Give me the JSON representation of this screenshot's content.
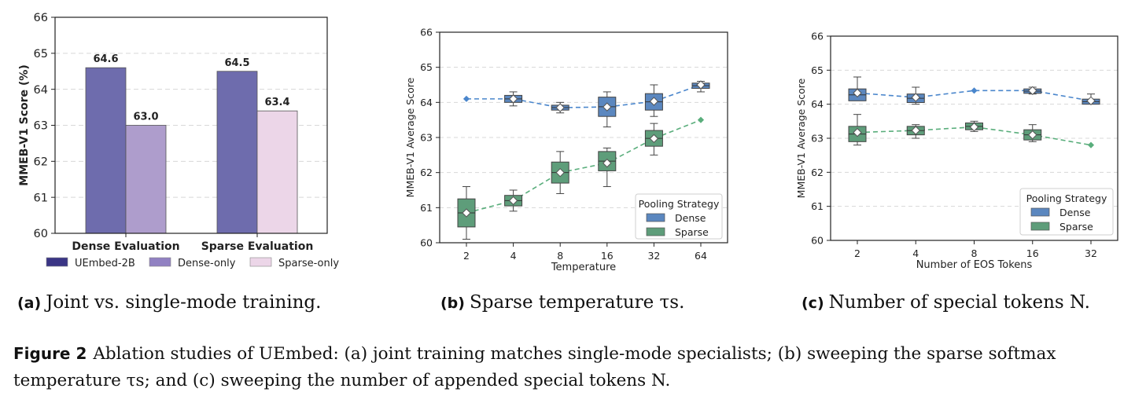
{
  "chart_data": [
    {
      "type": "bar",
      "categories": [
        "Dense Evaluation",
        "Sparse Evaluation"
      ],
      "series": [
        {
          "name": "UEmbed-2B",
          "values": [
            64.6,
            64.5
          ],
          "color": "#6e6cad"
        },
        {
          "name": "Dense-only",
          "values": [
            63.0,
            null
          ],
          "color": "#ae9dcc"
        },
        {
          "name": "Sparse-only",
          "values": [
            null,
            63.4
          ],
          "color": "#ecd6e8"
        }
      ],
      "legend_colors": [
        "#3a3585",
        "#9181c2",
        "#ecd6e8"
      ],
      "data_labels": [
        "64.6",
        "63.0",
        "64.5",
        "63.4"
      ],
      "ylabel": "MMEB-V1 Score (%)",
      "xlabel": "",
      "ylim": [
        60,
        66
      ],
      "yticks": [
        "60",
        "61",
        "62",
        "63",
        "64",
        "65",
        "66"
      ],
      "grid": true,
      "legend_placement": "bottom"
    },
    {
      "type": "box",
      "categories": [
        "2",
        "4",
        "8",
        "16",
        "32",
        "64"
      ],
      "xlabel": "Temperature",
      "ylabel": "MMEB-V1 Average Score",
      "ylim": [
        60,
        66
      ],
      "yticks": [
        "60",
        "61",
        "62",
        "63",
        "64",
        "65",
        "66"
      ],
      "legend_title": "Pooling Strategy",
      "legend_placement": "lower-right",
      "grid": true,
      "series": [
        {
          "name": "Dense",
          "color": "#5b87bf",
          "line_color": "#4a86cc",
          "mean": [
            64.1,
            64.1,
            63.85,
            63.87,
            64.03,
            64.5
          ],
          "q1": [
            64.1,
            64.0,
            63.78,
            63.6,
            63.78,
            64.4
          ],
          "q3": [
            64.1,
            64.2,
            63.92,
            64.15,
            64.25,
            64.55
          ],
          "wmin": [
            64.1,
            63.9,
            63.7,
            63.3,
            63.6,
            64.3
          ],
          "wmax": [
            64.1,
            64.3,
            64.0,
            64.3,
            64.5,
            64.6
          ]
        },
        {
          "name": "Sparse",
          "color": "#5e9d7a",
          "line_color": "#5aae7c",
          "mean": [
            60.85,
            61.2,
            62.0,
            62.27,
            62.97,
            63.5
          ],
          "q1": [
            60.45,
            61.05,
            61.7,
            62.05,
            62.75,
            63.5
          ],
          "q3": [
            61.25,
            61.35,
            62.3,
            62.6,
            63.2,
            63.5
          ],
          "wmin": [
            60.1,
            60.9,
            61.4,
            61.6,
            62.5,
            63.5
          ],
          "wmax": [
            61.6,
            61.5,
            62.6,
            62.7,
            63.4,
            63.5
          ]
        }
      ]
    },
    {
      "type": "box",
      "categories": [
        "2",
        "4",
        "8",
        "16",
        "32"
      ],
      "xlabel": "Number of EOS Tokens",
      "ylabel": "MMEB-V1 Average Score",
      "ylim": [
        60,
        66
      ],
      "yticks": [
        "60",
        "61",
        "62",
        "63",
        "64",
        "65",
        "66"
      ],
      "legend_title": "Pooling Strategy",
      "legend_placement": "lower-right",
      "grid": true,
      "series": [
        {
          "name": "Dense",
          "color": "#5b87bf",
          "line_color": "#4a86cc",
          "mean": [
            64.33,
            64.2,
            64.4,
            64.4,
            64.1
          ],
          "q1": [
            64.1,
            64.05,
            64.4,
            64.32,
            64.0
          ],
          "q3": [
            64.45,
            64.3,
            64.4,
            64.45,
            64.15
          ],
          "wmin": [
            64.1,
            64.0,
            64.4,
            64.3,
            64.0
          ],
          "wmax": [
            64.8,
            64.5,
            64.4,
            64.5,
            64.3
          ]
        },
        {
          "name": "Sparse",
          "color": "#5e9d7a",
          "line_color": "#5aae7c",
          "mean": [
            63.17,
            63.23,
            63.33,
            63.1,
            62.8
          ],
          "q1": [
            62.9,
            63.1,
            63.25,
            62.95,
            62.8
          ],
          "q3": [
            63.35,
            63.35,
            63.45,
            63.25,
            62.8
          ],
          "wmin": [
            62.8,
            63.0,
            63.2,
            62.9,
            62.8
          ],
          "wmax": [
            63.7,
            63.4,
            63.5,
            63.4,
            62.8
          ]
        }
      ]
    }
  ],
  "subcaptions": [
    {
      "tag": "(a)",
      "text": "Joint vs. single-mode training."
    },
    {
      "tag": "(b)",
      "text": "Sparse temperature τs."
    },
    {
      "tag": "(c)",
      "text": "Number of special tokens N."
    }
  ],
  "figure_caption": {
    "tag": "Figure 2",
    "text": "Ablation studies of UEmbed: (a) joint training matches single-mode specialists; (b) sweeping the sparse softmax temperature τs; and (c) sweeping the number of appended special tokens N."
  }
}
